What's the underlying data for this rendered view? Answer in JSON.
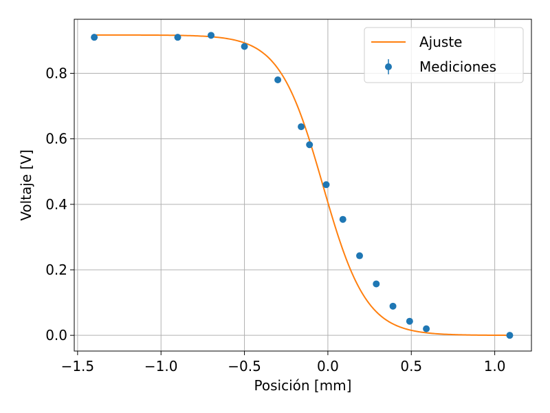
{
  "chart_data": {
    "type": "scatter",
    "title": "",
    "xlabel": "Posición [mm]",
    "ylabel": "Voltaje [V]",
    "xlim": [
      -1.52,
      1.22
    ],
    "ylim": [
      -0.048,
      0.965
    ],
    "xticks": [
      -1.5,
      -1.0,
      -0.5,
      0.0,
      0.5,
      1.0
    ],
    "xtick_labels": [
      "−1.5",
      "−1.0",
      "−0.5",
      "0.0",
      "0.5",
      "1.0"
    ],
    "yticks": [
      0.0,
      0.2,
      0.4,
      0.6,
      0.8
    ],
    "ytick_labels": [
      "0.0",
      "0.2",
      "0.4",
      "0.6",
      "0.8"
    ],
    "grid": true,
    "legend_position": "top-right",
    "series": [
      {
        "name": "Ajuste",
        "kind": "line",
        "color": "#ff7f0e",
        "model": {
          "form": "sigmoid",
          "amplitude": 0.917,
          "center": -0.03,
          "width": 0.13
        },
        "x_range": [
          -1.4,
          1.1
        ]
      },
      {
        "name": "Mediciones",
        "kind": "errorbar",
        "color": "#1f77b4",
        "x": [
          -1.4,
          -0.9,
          -0.7,
          -0.5,
          -0.3,
          -0.16,
          -0.11,
          -0.01,
          0.09,
          0.19,
          0.29,
          0.39,
          0.49,
          0.59,
          1.09
        ],
        "y": [
          0.91,
          0.91,
          0.916,
          0.882,
          0.78,
          0.637,
          0.582,
          0.46,
          0.354,
          0.243,
          0.157,
          0.089,
          0.043,
          0.02,
          0.0
        ]
      }
    ]
  }
}
